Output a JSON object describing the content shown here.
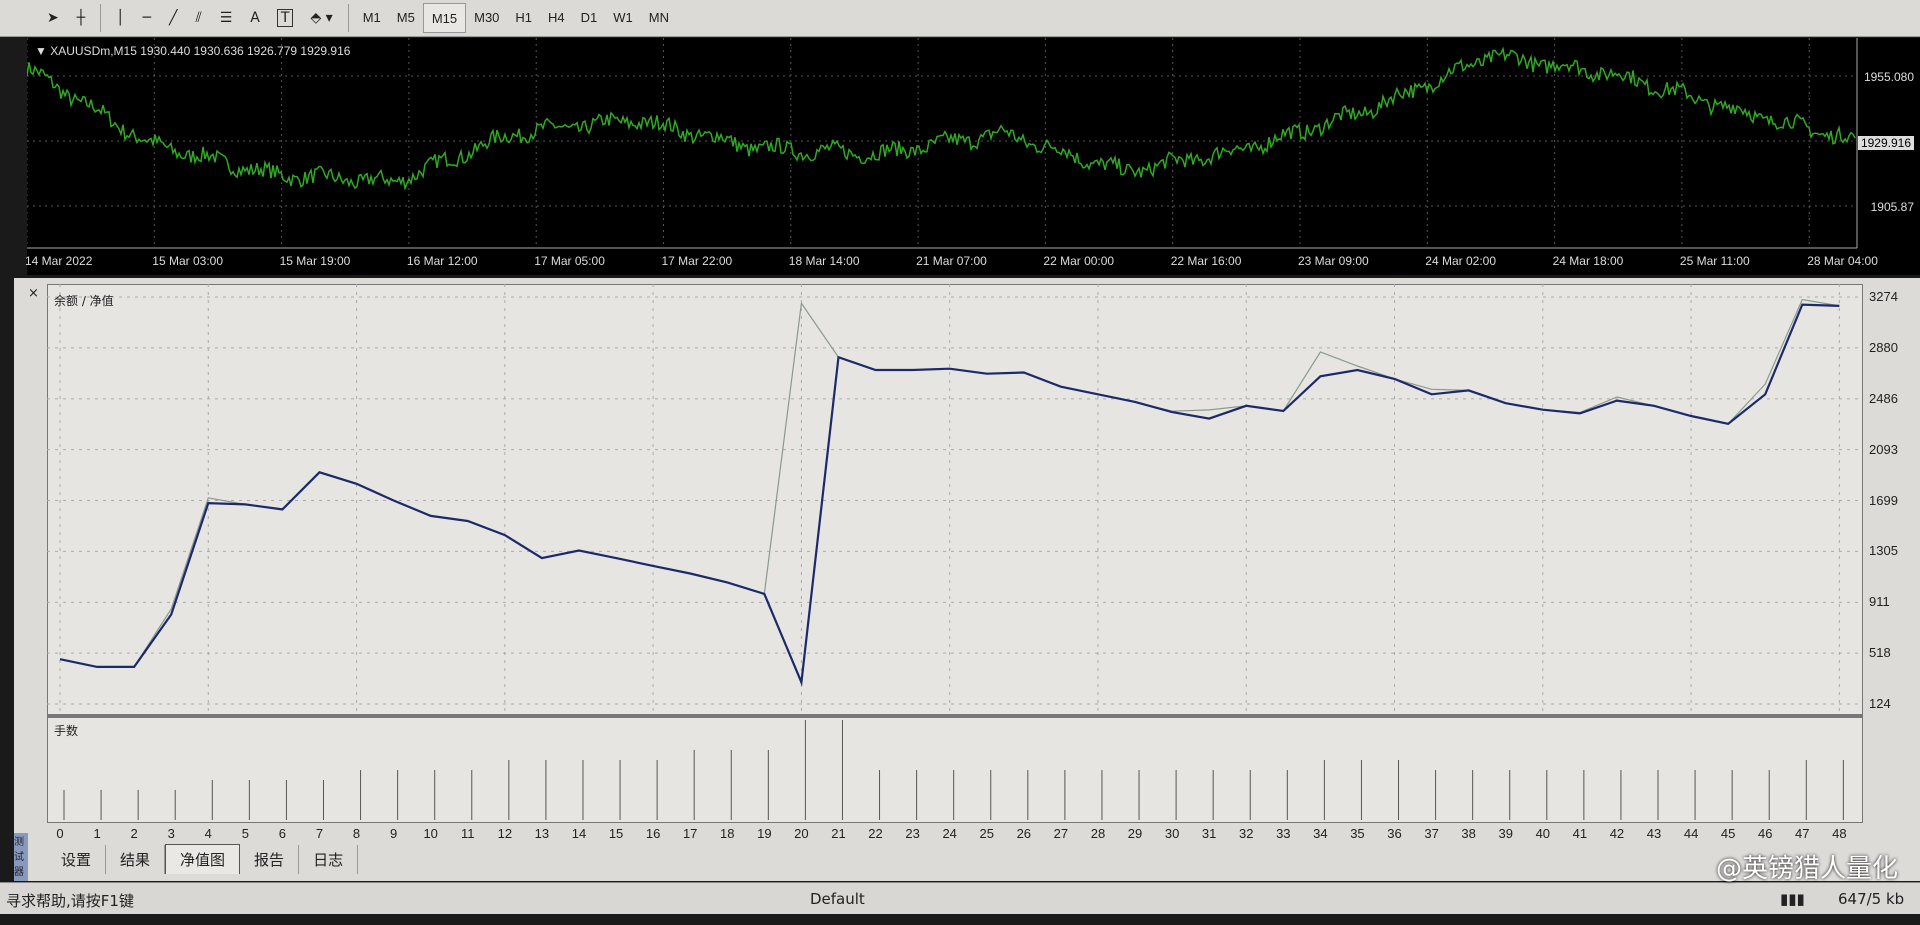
{
  "toolbar": {
    "tools": [
      "cursor-icon",
      "crosshair-icon",
      "vertical-line-icon",
      "horizontal-line-icon",
      "trendline-icon",
      "fibonacci-icon",
      "fibo-levels-icon",
      "text-icon",
      "text-label-icon",
      "arrows-icon"
    ],
    "text_tool": "A",
    "text_label_tool": "T",
    "timeframes": [
      "M1",
      "M5",
      "M15",
      "M30",
      "H1",
      "H4",
      "D1",
      "W1",
      "MN"
    ],
    "active_timeframe": "M15"
  },
  "price_chart": {
    "title": "XAUUSDm,M15  1930.440 1930.636 1926.779 1929.916",
    "line_color": "#2faa22",
    "price_labels": [
      "1955.080",
      "1929.916",
      "1905.87"
    ],
    "current_price": "1929.916",
    "time_labels": [
      "14 Mar 2022",
      "15 Mar 03:00",
      "15 Mar 19:00",
      "16 Mar 12:00",
      "17 Mar 05:00",
      "17 Mar 22:00",
      "18 Mar 14:00",
      "21 Mar 07:00",
      "22 Mar 00:00",
      "22 Mar 16:00",
      "23 Mar 09:00",
      "24 Mar 02:00",
      "24 Mar 18:00",
      "25 Mar 11:00",
      "28 Mar 04:00"
    ],
    "approx_prices": [
      1958,
      1929,
      1917,
      1914,
      1933,
      1938,
      1927,
      1925,
      1933,
      1918,
      1927,
      1942,
      1963,
      1956,
      1942,
      1930
    ]
  },
  "tester": {
    "close": "×",
    "tabs": [
      "设置",
      "结果",
      "净值图",
      "报告",
      "日志"
    ],
    "active_tab": "净值图",
    "side_label": "测试器"
  },
  "chart_data": {
    "type": "line",
    "title": "余额 / 净值",
    "lots_title": "手数",
    "ylim": [
      124,
      3274
    ],
    "y_ticks": [
      "3274",
      "2880",
      "2486",
      "2093",
      "1699",
      "1305",
      "911",
      "518",
      "124"
    ],
    "x": [
      0,
      1,
      2,
      3,
      4,
      5,
      6,
      7,
      8,
      9,
      10,
      11,
      12,
      13,
      14,
      15,
      16,
      17,
      18,
      19,
      20,
      21,
      22,
      23,
      24,
      25,
      26,
      27,
      28,
      29,
      30,
      31,
      32,
      33,
      34,
      35,
      36,
      37,
      38,
      39,
      40,
      41,
      42,
      43,
      44,
      45,
      46,
      47,
      48
    ],
    "series": [
      {
        "name": "余额",
        "color": "#1c2a6a",
        "values": [
          471,
          411,
          411,
          817,
          1679,
          1669,
          1630,
          1917,
          1828,
          1699,
          1580,
          1540,
          1431,
          1253,
          1312,
          1253,
          1193,
          1134,
          1065,
          976,
          292,
          2808,
          2709,
          2709,
          2719,
          2680,
          2690,
          2580,
          2521,
          2462,
          2383,
          2333,
          2432,
          2392,
          2660,
          2709,
          2640,
          2521,
          2551,
          2452,
          2402,
          2373,
          2472,
          2432,
          2353,
          2293,
          2521,
          3215,
          3205
        ]
      },
      {
        "name": "净值",
        "color": "#8a9a8a",
        "values": [
          471,
          411,
          411,
          860,
          1719,
          1669,
          1630,
          1917,
          1828,
          1699,
          1580,
          1540,
          1431,
          1253,
          1312,
          1253,
          1193,
          1134,
          1065,
          976,
          3225,
          2808,
          2709,
          2709,
          2719,
          2680,
          2690,
          2580,
          2521,
          2462,
          2390,
          2400,
          2432,
          2392,
          2848,
          2740,
          2640,
          2560,
          2551,
          2452,
          2402,
          2380,
          2500,
          2432,
          2353,
          2293,
          2600,
          3255,
          3205
        ]
      }
    ],
    "lots": [
      0.3,
      0.3,
      0.3,
      0.3,
      0.4,
      0.4,
      0.4,
      0.4,
      0.5,
      0.5,
      0.5,
      0.5,
      0.6,
      0.6,
      0.6,
      0.6,
      0.6,
      0.7,
      0.7,
      0.7,
      1.0,
      1.0,
      0.5,
      0.5,
      0.5,
      0.5,
      0.5,
      0.5,
      0.5,
      0.5,
      0.5,
      0.5,
      0.5,
      0.5,
      0.6,
      0.6,
      0.6,
      0.5,
      0.5,
      0.5,
      0.5,
      0.5,
      0.5,
      0.5,
      0.5,
      0.5,
      0.5,
      0.6,
      0.6
    ]
  },
  "status": {
    "help": "寻求帮助,请按F1键",
    "profile": "Default",
    "traffic": "647/5 kb"
  },
  "watermark": "@英镑猎人量化"
}
